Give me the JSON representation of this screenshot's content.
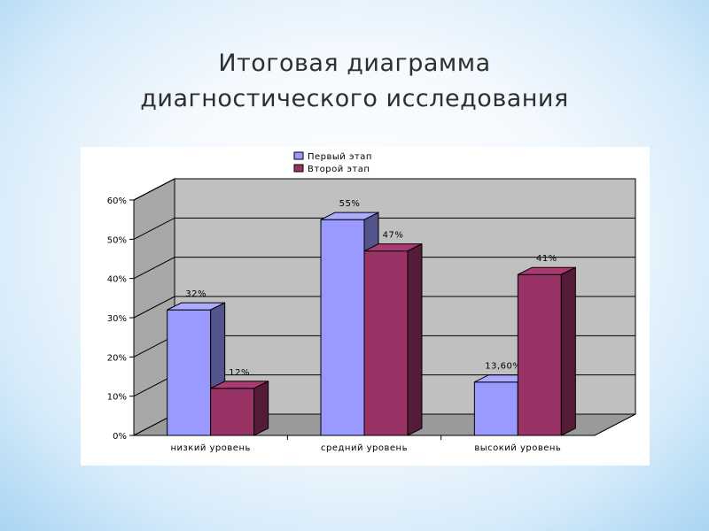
{
  "slide": {
    "title_line1": "Итоговая диаграмма",
    "title_line2": "диагностического исследования"
  },
  "chart_data": {
    "type": "bar",
    "categories": [
      "низкий уровень",
      "средний уровень",
      "высокий уровень"
    ],
    "series": [
      {
        "name": "Первый этап",
        "values": [
          32,
          55,
          13.6
        ],
        "labels": [
          "32%",
          "55%",
          "13,60%"
        ],
        "color": "#9999ff"
      },
      {
        "name": "Второй этап",
        "values": [
          12,
          47,
          41
        ],
        "labels": [
          "12%",
          "47%",
          "41%"
        ],
        "color": "#993366"
      }
    ],
    "ylim": [
      0,
      60
    ],
    "yticks": [
      "0%",
      "10%",
      "20%",
      "30%",
      "40%",
      "50%",
      "60%"
    ],
    "grid": true,
    "legend_position": "top",
    "style": "3d"
  }
}
